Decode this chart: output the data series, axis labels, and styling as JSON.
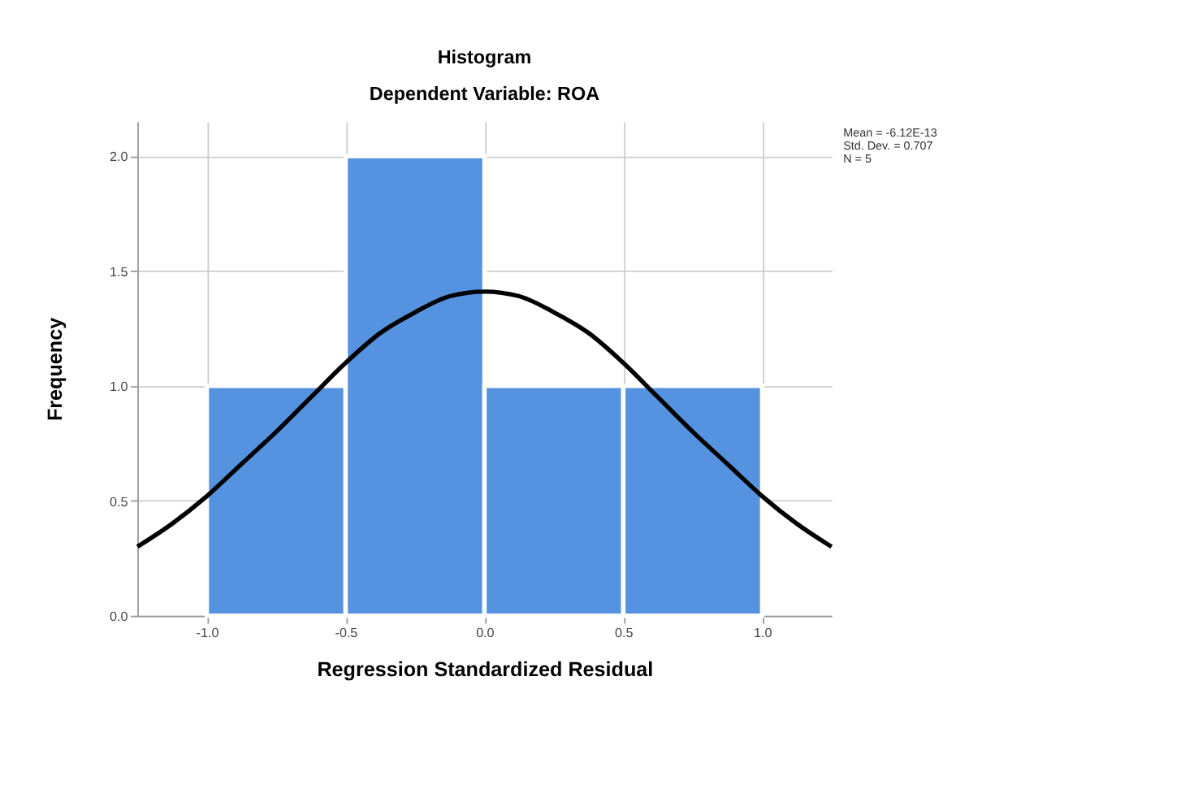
{
  "chart_data": {
    "type": "histogram",
    "title": "Histogram",
    "subtitle": "Dependent Variable: ROA",
    "xlabel": "Regression Standardized Residual",
    "ylabel": "Frequency",
    "bins": [
      -1.0,
      -0.5,
      0.0,
      0.5,
      1.0
    ],
    "values": [
      1,
      2,
      1,
      1
    ],
    "color": "#5593e0",
    "series": [
      {
        "type": "line",
        "color": "#000000",
        "x": [
          -1.25,
          -1.125,
          -1.0,
          -0.875,
          -0.75,
          -0.625,
          -0.5,
          -0.375,
          -0.25,
          -0.125,
          0.0,
          0.125,
          0.25,
          0.375,
          0.5,
          0.625,
          0.75,
          0.875,
          1.0,
          1.125,
          1.25
        ],
        "values": [
          0.3,
          0.4,
          0.52,
          0.66,
          0.8,
          0.95,
          1.1,
          1.23,
          1.32,
          1.39,
          1.41,
          1.39,
          1.32,
          1.23,
          1.1,
          0.95,
          0.8,
          0.66,
          0.52,
          0.4,
          0.3
        ]
      }
    ],
    "xlim": [
      -1.25,
      1.25
    ],
    "xticks": [
      {
        "value": -1.0,
        "label": "-1.0"
      },
      {
        "value": -0.5,
        "label": "-0.5"
      },
      {
        "value": 0,
        "label": "0.0"
      },
      {
        "value": 0.5,
        "label": "0.5"
      },
      {
        "value": 1.0,
        "label": "1.0"
      }
    ],
    "ylim": [
      0,
      2.15
    ],
    "yticks": [
      {
        "value": 0,
        "label": "0.0"
      },
      {
        "value": 0.5,
        "label": "0.5"
      },
      {
        "value": 1.0,
        "label": "1.0"
      },
      {
        "value": 1.5,
        "label": "1.5"
      },
      {
        "value": 2.0,
        "label": "2.0"
      }
    ],
    "grid": true,
    "annotations": [
      "Mean = -6.12E-13",
      "Std. Dev. = 0.707",
      "N = 5"
    ]
  }
}
